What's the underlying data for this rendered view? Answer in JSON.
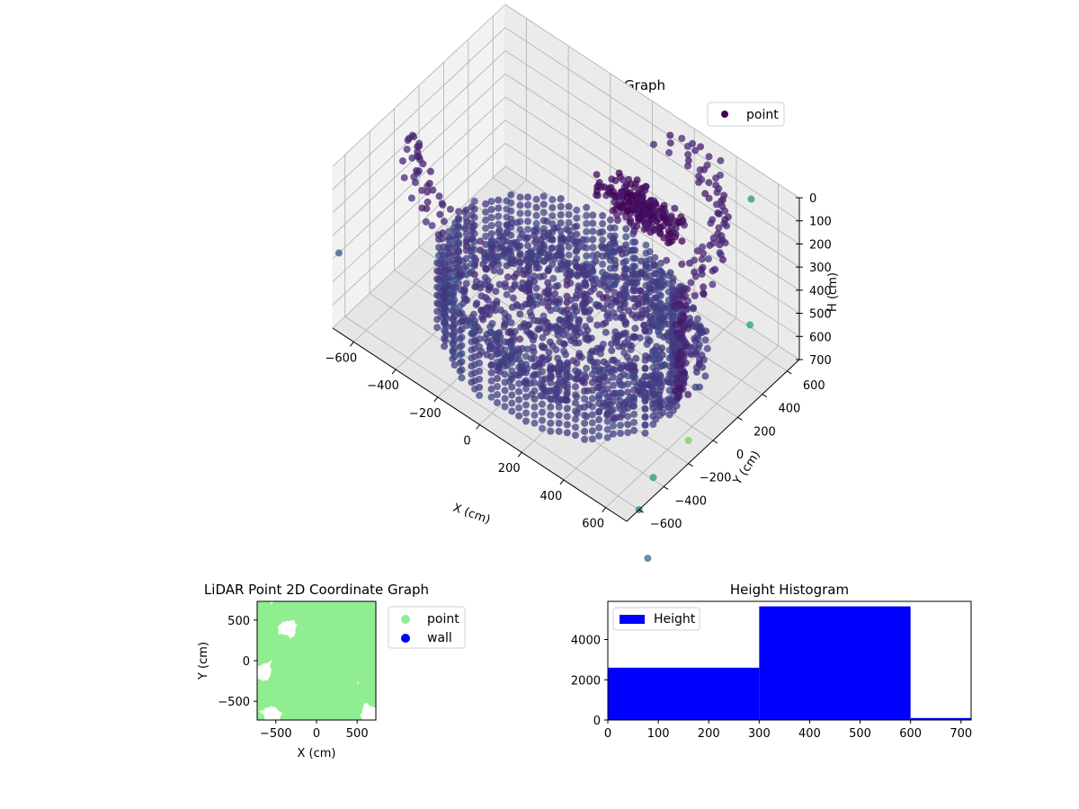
{
  "colors": {
    "axis": "#000000",
    "grid": "#b0b0b0",
    "pane_left": "#f2f2f2",
    "pane_right": "#ebebeb",
    "pane_floor": "#e6e6e6",
    "point_2d": "#90ee90",
    "wall_2d": "#0000ff",
    "histogram_bar": "#0000ff",
    "viridis_dark": "#440154",
    "viridis_mid": "#3b528b",
    "viridis_teal": "#21918c",
    "viridis_green": "#5ec962",
    "viridis_yellow": "#fde725"
  },
  "chart_data": [
    {
      "id": "scatter3d",
      "type": "scatter",
      "title": "LiDAR Point 3D Coordinate Graph",
      "xlabel": "X (cm)",
      "ylabel": "Y (cm)",
      "zlabel": "H (cm)",
      "xlim": [
        -700,
        700
      ],
      "ylim": [
        -700,
        700
      ],
      "zlim": [
        0,
        700
      ],
      "x_ticks": [
        "−600",
        "−400",
        "−200",
        "0",
        "200",
        "400",
        "600"
      ],
      "y_ticks": [
        "−600",
        "−400",
        "−200",
        "0",
        "200",
        "400",
        "600"
      ],
      "z_ticks": [
        "0",
        "100",
        "200",
        "300",
        "400",
        "500",
        "600",
        "700"
      ],
      "z_inverted": true,
      "colormap": "viridis",
      "grid": true,
      "legend": {
        "position": "top-right",
        "entries": [
          "point"
        ]
      },
      "series": [
        {
          "name": "point",
          "structures": [
            {
              "kind": "ring",
              "center": [
                0,
                0
              ],
              "radius": 450,
              "z_range": [
                600,
                700
              ]
            },
            {
              "kind": "ring",
              "center": [
                -150,
                250
              ],
              "radius": 650,
              "z_range": [
                100,
                300
              ]
            },
            {
              "kind": "disk",
              "center": [
                50,
                50
              ],
              "radius": 500,
              "z_range": [
                550,
                650
              ]
            },
            {
              "kind": "tube",
              "center": [
                150,
                300
              ],
              "radius": 200,
              "z_range": [
                150,
                250
              ]
            },
            {
              "kind": "column",
              "at": [
                550,
                0
              ],
              "z_range": [
                150,
                600
              ]
            }
          ],
          "approx_count": 8400
        }
      ]
    },
    {
      "id": "scatter2d",
      "type": "scatter",
      "title": "LiDAR Point 2D Coordinate Graph",
      "xlabel": "X (cm)",
      "ylabel": "Y (cm)",
      "xlim": [
        -730,
        730
      ],
      "ylim": [
        -730,
        730
      ],
      "x_ticks": [
        "−500",
        "0",
        "500"
      ],
      "y_ticks": [
        "−500",
        "0",
        "500"
      ],
      "legend": {
        "position": "outside-right",
        "entries": [
          "point",
          "wall"
        ]
      },
      "series": [
        {
          "name": "point",
          "coverage": "nearly full",
          "gaps": [
            [
              -350,
              400
            ],
            [
              -650,
              -150
            ],
            [
              -550,
              -650
            ],
            [
              650,
              -650
            ]
          ]
        },
        {
          "name": "wall",
          "count": 0
        }
      ]
    },
    {
      "id": "histogram",
      "type": "bar",
      "title": "Height Histogram",
      "xlabel": "",
      "ylabel": "",
      "bins": [
        [
          0,
          300
        ],
        [
          300,
          600
        ],
        [
          600,
          900
        ]
      ],
      "values": [
        2600,
        5650,
        100
      ],
      "xlim": [
        0,
        720
      ],
      "ylim": [
        0,
        5900
      ],
      "x_ticks": [
        "0",
        "100",
        "200",
        "300",
        "400",
        "500",
        "600",
        "700"
      ],
      "y_ticks": [
        "0",
        "2000",
        "4000"
      ],
      "legend": {
        "position": "top-left",
        "entries": [
          "Height"
        ]
      },
      "series": [
        {
          "name": "Height",
          "values": [
            2600,
            5650,
            100
          ]
        }
      ]
    }
  ]
}
